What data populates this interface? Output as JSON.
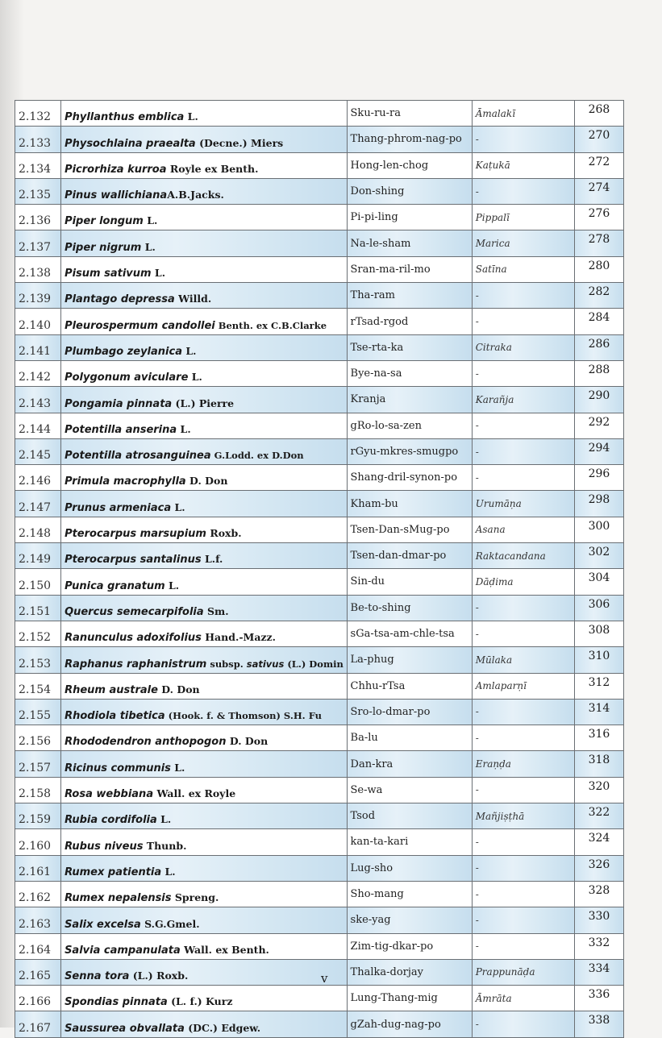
{
  "table": {
    "rows": [
      {
        "num": "2.132",
        "name": [
          {
            "t": "Phyllanthus emblica",
            "i": true
          },
          {
            "t": " L.",
            "i": false
          }
        ],
        "tibetan": "Sku-ru-ra",
        "sanskrit": "Āmalakī",
        "page": "268"
      },
      {
        "num": "2.133",
        "name": [
          {
            "t": "Physochlaina praealta",
            "i": true
          },
          {
            "t": " (Decne.) Miers",
            "i": false
          }
        ],
        "tibetan": "Thang-phrom-nag-po",
        "sanskrit": "-",
        "page": "270"
      },
      {
        "num": "2.134",
        "name": [
          {
            "t": "Picrorhiza kurroa",
            "i": true
          },
          {
            "t": " Royle ex Benth.",
            "i": false
          }
        ],
        "tibetan": "Hong-len-chog",
        "sanskrit": "Kaṭukā",
        "page": "272"
      },
      {
        "num": "2.135",
        "name": [
          {
            "t": "Pinus wallichiana",
            "i": true
          },
          {
            "t": "A.B.Jacks.",
            "i": false
          }
        ],
        "tibetan": "Don-shing",
        "sanskrit": "-",
        "page": "274"
      },
      {
        "num": "2.136",
        "name": [
          {
            "t": "Piper longum",
            "i": true
          },
          {
            "t": " L.",
            "i": false
          }
        ],
        "tibetan": "Pi-pi-ling",
        "sanskrit": "Pippalī",
        "page": "276"
      },
      {
        "num": "2.137",
        "name": [
          {
            "t": "Piper nigrum",
            "i": true
          },
          {
            "t": " L.",
            "i": false
          }
        ],
        "tibetan": "Na-le-sham",
        "sanskrit": "Marica",
        "page": "278"
      },
      {
        "num": "2.138",
        "name": [
          {
            "t": "Pisum sativum",
            "i": true
          },
          {
            "t": " L.",
            "i": false
          }
        ],
        "tibetan": "Sran-ma-ril-mo",
        "sanskrit": "Satīna",
        "page": "280"
      },
      {
        "num": "2.139",
        "name": [
          {
            "t": "Plantago depressa",
            "i": true
          },
          {
            "t": " Willd.",
            "i": false
          }
        ],
        "tibetan": "Tha-ram",
        "sanskrit": "-",
        "page": "282"
      },
      {
        "num": "2.140",
        "name": [
          {
            "t": "Pleurospermum candollei",
            "i": true
          },
          {
            "t": " Benth. ex C.B.Clarke",
            "i": false,
            "small": true
          }
        ],
        "tibetan": "rTsad-rgod",
        "sanskrit": "-",
        "page": "284"
      },
      {
        "num": "2.141",
        "name": [
          {
            "t": "Plumbago zeylanica",
            "i": true
          },
          {
            "t": " L.",
            "i": false
          }
        ],
        "tibetan": "Tse-rta-ka",
        "sanskrit": "Citraka",
        "page": "286"
      },
      {
        "num": "2.142",
        "name": [
          {
            "t": "Polygonum aviculare",
            "i": true
          },
          {
            "t": " L.",
            "i": false
          }
        ],
        "tibetan": "Bye-na-sa",
        "sanskrit": "-",
        "page": "288"
      },
      {
        "num": "2.143",
        "name": [
          {
            "t": "Pongamia pinnata",
            "i": true
          },
          {
            "t": " (L.) Pierre",
            "i": false
          }
        ],
        "tibetan": "Kranja",
        "sanskrit": "Karañja",
        "page": "290"
      },
      {
        "num": "2.144",
        "name": [
          {
            "t": "Potentilla anserina",
            "i": true
          },
          {
            "t": " L.",
            "i": false
          }
        ],
        "tibetan": "gRo-lo-sa-zen",
        "sanskrit": "-",
        "page": "292"
      },
      {
        "num": "2.145",
        "name": [
          {
            "t": "Potentilla atrosanguinea",
            "i": true
          },
          {
            "t": " G.Lodd. ex D.Don",
            "i": false,
            "small": true
          }
        ],
        "tibetan": "rGyu-mkres-smugpo",
        "sanskrit": "-",
        "page": "294"
      },
      {
        "num": "2.146",
        "name": [
          {
            "t": "Primula macrophylla",
            "i": true
          },
          {
            "t": " D. Don",
            "i": false
          }
        ],
        "tibetan": "Shang-dril-synon-po",
        "sanskrit": "-",
        "page": "296"
      },
      {
        "num": "2.147",
        "name": [
          {
            "t": "Prunus armeniaca",
            "i": true
          },
          {
            "t": " L.",
            "i": false
          }
        ],
        "tibetan": "Kham-bu",
        "sanskrit": "Urumāṇa",
        "page": "298"
      },
      {
        "num": "2.148",
        "name": [
          {
            "t": "Pterocarpus marsupium",
            "i": true
          },
          {
            "t": " Roxb.",
            "i": false
          }
        ],
        "tibetan": "Tsen-Dan-sMug-po",
        "sanskrit": "Asana",
        "page": "300"
      },
      {
        "num": "2.149",
        "name": [
          {
            "t": "Pterocarpus santalinus",
            "i": true
          },
          {
            "t": " L.f.",
            "i": false
          }
        ],
        "tibetan": "Tsen-dan-dmar-po",
        "sanskrit": "Raktacandana",
        "page": "302"
      },
      {
        "num": "2.150",
        "name": [
          {
            "t": "Punica granatum",
            "i": true
          },
          {
            "t": " L.",
            "i": false
          }
        ],
        "tibetan": "Sin-du",
        "sanskrit": "Dāḍima",
        "page": "304"
      },
      {
        "num": "2.151",
        "name": [
          {
            "t": "Quercus semecarpifolia",
            "i": true
          },
          {
            "t": " Sm.",
            "i": false
          }
        ],
        "tibetan": "Be-to-shing",
        "sanskrit": "-",
        "page": "306"
      },
      {
        "num": "2.152",
        "name": [
          {
            "t": "Ranunculus adoxifolius",
            "i": true
          },
          {
            "t": " Hand.-Mazz.",
            "i": false
          }
        ],
        "tibetan": "sGa-tsa-am-chle-tsa",
        "sanskrit": "-",
        "page": "308"
      },
      {
        "num": "2.153",
        "name": [
          {
            "t": "Raphanus raphanistrum",
            "i": true
          },
          {
            "t": " subsp. ",
            "i": false,
            "small": true
          },
          {
            "t": "sativus",
            "i": true,
            "small": true
          },
          {
            "t": " (L.) Domin",
            "i": false,
            "small": true
          }
        ],
        "tibetan": "La-phug",
        "sanskrit": "Mūlaka",
        "page": "310"
      },
      {
        "num": "2.154",
        "name": [
          {
            "t": "Rheum australe",
            "i": true
          },
          {
            "t": " D. Don",
            "i": false
          }
        ],
        "tibetan": "Chhu-rTsa",
        "sanskrit": "Amlaparṇī",
        "page": "312"
      },
      {
        "num": "2.155",
        "name": [
          {
            "t": "Rhodiola tibetica",
            "i": true
          },
          {
            "t": " (Hook. f. & Thomson) S.H. Fu",
            "i": false,
            "small": true
          }
        ],
        "tibetan": "Sro-lo-dmar-po",
        "sanskrit": "-",
        "page": "314"
      },
      {
        "num": "2.156",
        "name": [
          {
            "t": "Rhododendron anthopogon",
            "i": true
          },
          {
            "t": " D. Don",
            "i": false
          }
        ],
        "tibetan": "Ba-lu",
        "sanskrit": "-",
        "page": "316"
      },
      {
        "num": "2.157",
        "name": [
          {
            "t": "Ricinus communis",
            "i": true
          },
          {
            "t": " L.",
            "i": false
          }
        ],
        "tibetan": "Dan-kra",
        "sanskrit": "Eraṇḍa",
        "page": "318"
      },
      {
        "num": "2.158",
        "name": [
          {
            "t": "Rosa webbiana",
            "i": true
          },
          {
            "t": " Wall. ex Royle",
            "i": false
          }
        ],
        "tibetan": "Se-wa",
        "sanskrit": "-",
        "page": "320"
      },
      {
        "num": "2.159",
        "name": [
          {
            "t": "Rubia cordifolia",
            "i": true
          },
          {
            "t": " L.",
            "i": false
          }
        ],
        "tibetan": "Tsod",
        "sanskrit": "Mañjiṣṭhā",
        "page": "322"
      },
      {
        "num": "2.160",
        "name": [
          {
            "t": "Rubus niveus",
            "i": true
          },
          {
            "t": " Thunb.",
            "i": false
          }
        ],
        "tibetan": "kan-ta-kari",
        "sanskrit": "-",
        "page": "324"
      },
      {
        "num": "2.161",
        "name": [
          {
            "t": "Rumex patientia",
            "i": true
          },
          {
            "t": " L.",
            "i": false
          }
        ],
        "tibetan": "Lug-sho",
        "sanskrit": "-",
        "page": "326"
      },
      {
        "num": "2.162",
        "name": [
          {
            "t": "Rumex nepalensis",
            "i": true
          },
          {
            "t": " Spreng.",
            "i": false
          }
        ],
        "tibetan": "Sho-mang",
        "sanskrit": "-",
        "page": "328"
      },
      {
        "num": "2.163",
        "name": [
          {
            "t": "Salix excelsa",
            "i": true
          },
          {
            "t": " S.G.Gmel.",
            "i": false
          }
        ],
        "tibetan": "ske-yag",
        "sanskrit": "-",
        "page": "330"
      },
      {
        "num": "2.164",
        "name": [
          {
            "t": "Salvia campanulata",
            "i": true
          },
          {
            "t": " Wall. ex Benth.",
            "i": false
          }
        ],
        "tibetan": "Zim-tig-dkar-po",
        "sanskrit": "-",
        "page": "332"
      },
      {
        "num": "2.165",
        "name": [
          {
            "t": "Senna tora",
            "i": true
          },
          {
            "t": " (L.) Roxb.",
            "i": false
          }
        ],
        "tibetan": "Thalka-dorjay",
        "sanskrit": "Prappunāḍa",
        "page": "334"
      },
      {
        "num": "2.166",
        "name": [
          {
            "t": "Spondias pinnata",
            "i": true
          },
          {
            "t": " (L. f.) Kurz",
            "i": false
          }
        ],
        "tibetan": "Lung-Thang-mig",
        "sanskrit": "Āmrāta",
        "page": "336"
      },
      {
        "num": "2.167",
        "name": [
          {
            "t": "Saussurea obvallata",
            "i": true
          },
          {
            "t": " (DC.) Edgew.",
            "i": false
          }
        ],
        "tibetan": "gZah-dug-nag-po",
        "sanskrit": "-",
        "page": "338"
      }
    ]
  },
  "footer": {
    "folio": "v"
  },
  "colors": {
    "row_shade": "#d6e8f3",
    "border": "#6a6f74"
  }
}
